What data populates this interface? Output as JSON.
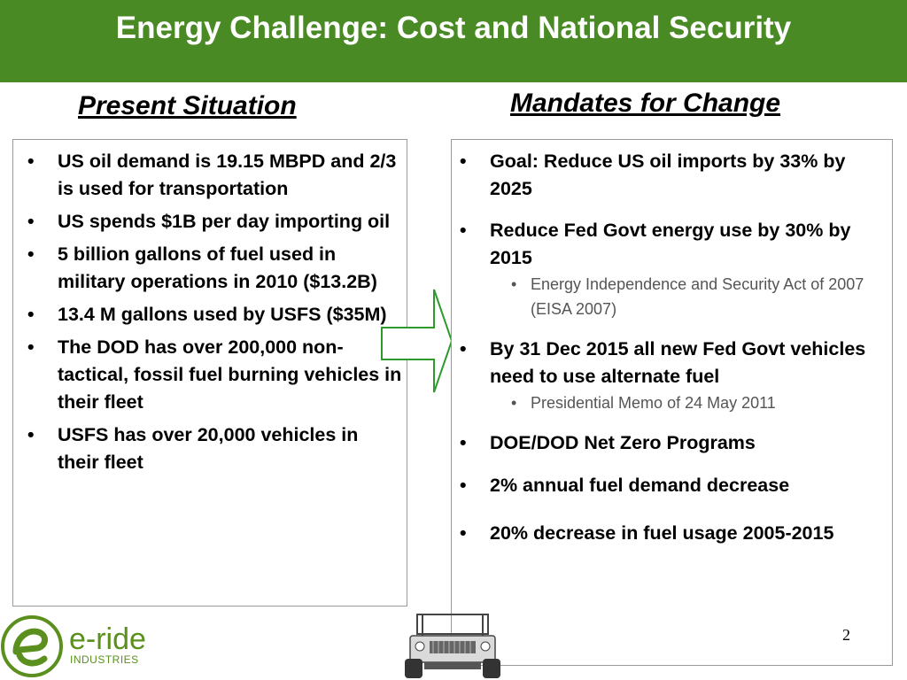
{
  "header": {
    "title": "Energy Challenge:  Cost and National Security"
  },
  "left": {
    "heading": "Present Situation",
    "items": [
      "US oil demand is 19.15 MBPD and 2/3 is used for transportation",
      "US spends $1B per day importing oil",
      "5 billion gallons of fuel used in military operations in 2010 ($13.2B)",
      "13.4 M gallons used by USFS ($35M)",
      "The DOD has over 200,000 non-tactical, fossil fuel burning vehicles in their fleet",
      "USFS has over 20,000 vehicles in their fleet"
    ]
  },
  "right": {
    "heading": "Mandates for Change",
    "items": [
      {
        "text": "Goal: Reduce US oil imports by 33% by 2025"
      },
      {
        "text": "Reduce Fed Govt  energy use by 30% by 2015",
        "sub": "Energy Independence and Security Act of 2007 (EISA 2007)"
      },
      {
        "text": "By 31 Dec 2015 all new Fed Govt vehicles need to use alternate fuel",
        "sub": "Presidential Memo of 24 May 2011"
      },
      {
        "text": "DOE/DOD Net Zero Programs"
      },
      {
        "text": "2% annual fuel demand decrease"
      },
      {
        "text": "20% decrease in fuel usage 2005-2015"
      }
    ]
  },
  "footer": {
    "page_number": "2",
    "logo_name": "e-ride",
    "logo_sub": "INDUSTRIES"
  },
  "colors": {
    "header_green": "#4a8a24",
    "arrow_green": "#2e9a2e",
    "logo_green": "#5b8f1e"
  }
}
